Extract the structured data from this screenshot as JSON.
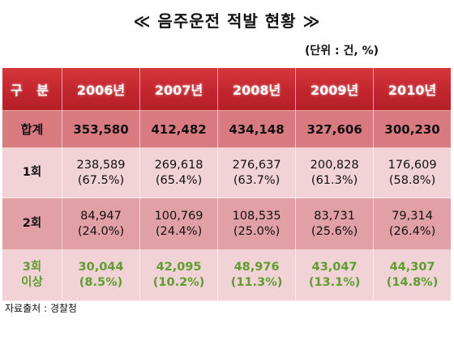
{
  "title": "≪ 음주운전 적발 현황 ≫",
  "unit": "(단위 : 건, %)",
  "table": {
    "header": {
      "corner": "구 분",
      "years": [
        "2006년",
        "2007년",
        "2008년",
        "2009년",
        "2010년"
      ]
    },
    "rows": [
      {
        "label": "합계",
        "counts": [
          "353,580",
          "412,482",
          "434,148",
          "327,606",
          "300,230"
        ],
        "percents": []
      },
      {
        "label": "1회",
        "counts": [
          "238,589",
          "269,618",
          "276,637",
          "200,828",
          "176,609"
        ],
        "percents": [
          "(67.5%)",
          "(65.4%)",
          "(63.7%)",
          "(61.3%)",
          "(58.8%)"
        ]
      },
      {
        "label": "2회",
        "counts": [
          "84,947",
          "100,769",
          "108,535",
          "83,731",
          "79,314"
        ],
        "percents": [
          "(24.0%)",
          "(24.4%)",
          "(25.0%)",
          "(25.6%)",
          "(26.4%)"
        ]
      },
      {
        "label_line1": "3회",
        "label_line2": "이상",
        "counts": [
          "30,044",
          "42,095",
          "48,976",
          "43,047",
          "44,307"
        ],
        "percents": [
          "(8.5%)",
          "(10.2%)",
          "(11.3%)",
          "(13.1%)",
          "(14.8%)"
        ]
      }
    ]
  },
  "colors": {
    "header_red": "#c2262d",
    "total_row": "#d97a80",
    "light_row": "#f1d3d7",
    "mid_row": "#e0a0a6",
    "green_text": "#5f9d2c"
  },
  "source": "자료출처 : 경찰청"
}
